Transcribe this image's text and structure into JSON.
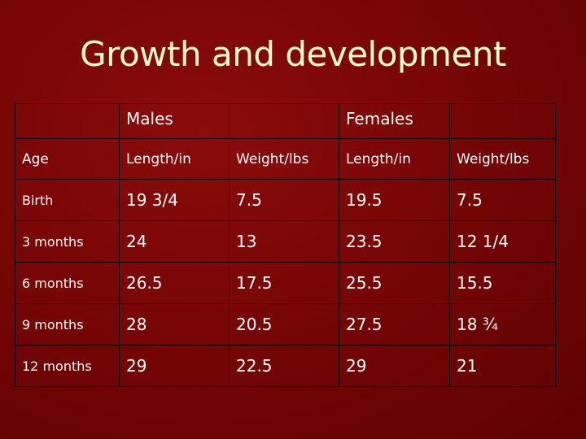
{
  "title": "Growth and development",
  "table": {
    "group_headers": [
      "",
      "Males",
      "",
      "Females",
      ""
    ],
    "column_headers": [
      "Age",
      "Length/in",
      "Weight/lbs",
      "Length/in",
      "Weight/lbs"
    ],
    "rows": [
      [
        "Birth",
        "19 3/4",
        "7.5",
        "19.5",
        "7.5"
      ],
      [
        "3 months",
        "24",
        "13",
        "23.5",
        "12 1/4"
      ],
      [
        "6 months",
        "26.5",
        "17.5",
        "25.5",
        "15.5"
      ],
      [
        "9 months",
        "28",
        "20.5",
        "27.5",
        "18 ¾"
      ],
      [
        "12 months",
        "29",
        "22.5",
        "29",
        "21"
      ]
    ]
  },
  "colors": {
    "background": "#7a0606",
    "title": "#ffffcc",
    "text": "#ffffff",
    "border": "#000000"
  }
}
